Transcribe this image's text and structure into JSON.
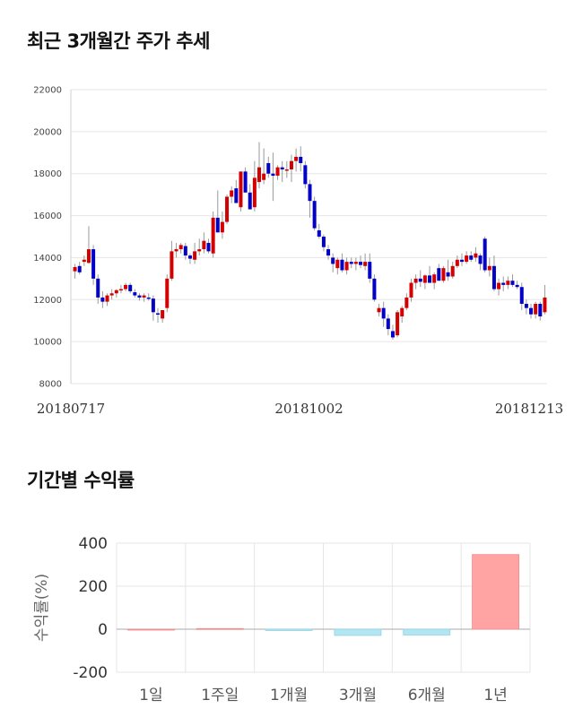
{
  "sections": {
    "price_title": "최근 3개월간 주가 추세",
    "returns_title": "기간별 수익률"
  },
  "colors": {
    "up": "#d40000",
    "down": "#0000c8",
    "positive_bar": "#ffa3a3",
    "negative_bar": "#b2e6f2",
    "grid": "#e6e6e6"
  },
  "chart_data": [
    {
      "type": "candlestick",
      "title": "최근 3개월간 주가 추세",
      "ylim": [
        8000,
        22000
      ],
      "y_ticks": [
        8000,
        10000,
        12000,
        14000,
        16000,
        18000,
        20000,
        22000
      ],
      "x_tick_labels": [
        "20180717",
        "20181002",
        "20181213"
      ],
      "grid": true,
      "candles": [
        [
          13350,
          13700,
          13000,
          13550
        ],
        [
          13600,
          13800,
          13200,
          13300
        ],
        [
          13800,
          14100,
          13600,
          13900
        ],
        [
          13750,
          15500,
          13700,
          14400
        ],
        [
          14400,
          14600,
          12700,
          13000
        ],
        [
          13000,
          13200,
          11800,
          12100
        ],
        [
          12100,
          12400,
          11600,
          11900
        ],
        [
          11900,
          12300,
          11700,
          12200
        ],
        [
          12200,
          12500,
          12000,
          12300
        ],
        [
          12300,
          12500,
          12100,
          12450
        ],
        [
          12450,
          12700,
          12300,
          12500
        ],
        [
          12500,
          12800,
          12400,
          12700
        ],
        [
          12700,
          12800,
          12300,
          12400
        ],
        [
          12350,
          12500,
          12100,
          12200
        ],
        [
          12200,
          12300,
          11950,
          12100
        ],
        [
          12100,
          12300,
          11900,
          12200
        ],
        [
          12100,
          12300,
          11950,
          12050
        ],
        [
          12050,
          12200,
          11000,
          11400
        ],
        [
          11350,
          11600,
          10900,
          11300
        ],
        [
          11100,
          11400,
          10900,
          11500
        ],
        [
          11600,
          13200,
          11400,
          13000
        ],
        [
          13000,
          14800,
          12900,
          14300
        ],
        [
          14300,
          14700,
          14000,
          14400
        ],
        [
          14400,
          14700,
          14200,
          14600
        ],
        [
          14550,
          14700,
          13900,
          14100
        ],
        [
          14100,
          14200,
          13700,
          13950
        ],
        [
          13900,
          14700,
          13700,
          14300
        ],
        [
          14300,
          14900,
          14100,
          14400
        ],
        [
          14400,
          15200,
          14200,
          14800
        ],
        [
          14700,
          14900,
          14200,
          14300
        ],
        [
          14200,
          16200,
          14000,
          15900
        ],
        [
          15900,
          17200,
          15300,
          15200
        ],
        [
          15200,
          16200,
          14900,
          15700
        ],
        [
          15700,
          17000,
          15600,
          16900
        ],
        [
          16900,
          17400,
          16600,
          17200
        ],
        [
          17300,
          17700,
          16700,
          16600
        ],
        [
          16400,
          18100,
          16200,
          18100
        ],
        [
          18100,
          18300,
          17200,
          17100
        ],
        [
          17100,
          17500,
          16400,
          16300
        ],
        [
          16400,
          18600,
          16200,
          17800
        ],
        [
          17600,
          19500,
          17300,
          18300
        ],
        [
          17700,
          19200,
          17500,
          18000
        ],
        [
          18500,
          18800,
          17800,
          18000
        ],
        [
          18000,
          19000,
          16700,
          17900
        ],
        [
          17900,
          18400,
          17700,
          18300
        ],
        [
          18300,
          18600,
          17600,
          18200
        ],
        [
          18200,
          18600,
          17800,
          18200
        ],
        [
          18200,
          18900,
          17600,
          18600
        ],
        [
          18600,
          19200,
          18100,
          18800
        ],
        [
          18800,
          19300,
          18100,
          18500
        ],
        [
          18400,
          18600,
          17300,
          17500
        ],
        [
          17500,
          17700,
          15900,
          16700
        ],
        [
          16700,
          16900,
          15300,
          15400
        ],
        [
          15300,
          15600,
          14900,
          15000
        ],
        [
          15000,
          15100,
          14300,
          14500
        ],
        [
          14400,
          14600,
          13900,
          14100
        ],
        [
          14000,
          14200,
          13300,
          13700
        ],
        [
          13500,
          14000,
          13200,
          13900
        ],
        [
          13900,
          14200,
          13300,
          13400
        ],
        [
          13400,
          14000,
          13200,
          13800
        ],
        [
          13800,
          14000,
          13500,
          13700
        ],
        [
          13700,
          14000,
          13400,
          13800
        ],
        [
          13800,
          14100,
          13500,
          13650
        ],
        [
          13600,
          14200,
          13400,
          13800
        ],
        [
          13800,
          14200,
          12800,
          13000
        ],
        [
          13000,
          13200,
          11900,
          12000
        ],
        [
          11400,
          11800,
          11200,
          11600
        ],
        [
          11600,
          11900,
          10700,
          11100
        ],
        [
          11100,
          11300,
          10300,
          10600
        ],
        [
          10500,
          10800,
          10100,
          10200
        ],
        [
          10300,
          11500,
          10200,
          11400
        ],
        [
          11200,
          11700,
          10900,
          11600
        ],
        [
          11600,
          12300,
          11500,
          12100
        ],
        [
          12100,
          13000,
          11900,
          12800
        ],
        [
          12800,
          13200,
          12500,
          13000
        ],
        [
          13000,
          13400,
          12600,
          12850
        ],
        [
          12800,
          13200,
          12500,
          13150
        ],
        [
          13150,
          13600,
          12800,
          12800
        ],
        [
          12800,
          13300,
          12500,
          13200
        ],
        [
          13500,
          13700,
          12900,
          12900
        ],
        [
          12900,
          13600,
          12800,
          13500
        ],
        [
          13300,
          13900,
          12900,
          13100
        ],
        [
          13100,
          13800,
          13000,
          13600
        ],
        [
          13600,
          14100,
          13500,
          13900
        ],
        [
          13900,
          14200,
          13600,
          13800
        ],
        [
          13800,
          14300,
          13700,
          14100
        ],
        [
          14100,
          14300,
          13800,
          13900
        ],
        [
          14000,
          14500,
          13800,
          14200
        ],
        [
          14100,
          14200,
          13400,
          13700
        ],
        [
          14900,
          15000,
          13300,
          13400
        ],
        [
          13400,
          14000,
          13100,
          13600
        ],
        [
          13600,
          14100,
          12400,
          12500
        ],
        [
          12500,
          13000,
          12200,
          12800
        ],
        [
          12800,
          13100,
          12400,
          12700
        ],
        [
          12700,
          13100,
          12500,
          12900
        ],
        [
          12900,
          13200,
          12600,
          12700
        ],
        [
          12700,
          12900,
          12500,
          12600
        ],
        [
          12600,
          12800,
          11500,
          11800
        ],
        [
          11800,
          12000,
          11300,
          11600
        ],
        [
          11600,
          11800,
          11100,
          11300
        ],
        [
          11300,
          11900,
          11100,
          11800
        ],
        [
          11800,
          11900,
          11000,
          11200
        ],
        [
          11400,
          12700,
          11300,
          12100
        ]
      ]
    },
    {
      "type": "bar",
      "title": "기간별 수익률",
      "ylabel": "수익률(%)",
      "ylim": [
        -200,
        400
      ],
      "y_ticks": [
        -200,
        0,
        200,
        400
      ],
      "grid": true,
      "categories": [
        "1일",
        "1주일",
        "1개월",
        "3개월",
        "6개월",
        "1년"
      ],
      "values": [
        0,
        3,
        -6,
        -29,
        -27,
        347
      ]
    }
  ]
}
